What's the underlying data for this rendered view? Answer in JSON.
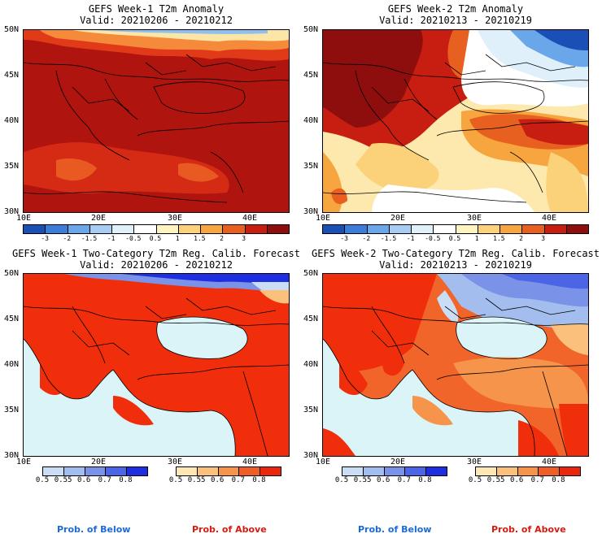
{
  "panels": [
    {
      "id": "p1",
      "title_line1": "GEFS Week-1 T2m Anomaly",
      "title_line2": "Valid: 20210206 - 20210212"
    },
    {
      "id": "p2",
      "title_line1": "GEFS Week-2 T2m Anomaly",
      "title_line2": "Valid: 20210213 - 20210219"
    },
    {
      "id": "p3",
      "title_line1": "GEFS Week-1 Two-Category T2m Reg. Calib. Forecast",
      "title_line2": "Valid: 20210206 - 20210212"
    },
    {
      "id": "p4",
      "title_line1": "GEFS Week-2 Two-Category T2m Reg. Calib. Forecast",
      "title_line2": "Valid: 20210213 - 20210219"
    }
  ],
  "axes": {
    "lat_labels": [
      "50N",
      "45N",
      "40N",
      "35N",
      "30N"
    ],
    "lon_labels": [
      "10E",
      "20E",
      "30E",
      "40E"
    ]
  },
  "anomaly_colorbar": {
    "labels": [
      "-3",
      "-2",
      "-1.5",
      "-1",
      "-0.5",
      "0.5",
      "1",
      "1.5",
      "2",
      "3"
    ],
    "colors": [
      "#1a4fb5",
      "#3b7dd8",
      "#6aa6ea",
      "#a8cdf5",
      "#dff0fb",
      "#ffffff",
      "#fff4c0",
      "#fbd27a",
      "#f7a53e",
      "#e8601f",
      "#c81e12",
      "#8e0e0e"
    ]
  },
  "prob_colorbars": {
    "below": {
      "labels": [
        "0.5",
        "0.55",
        "0.6",
        "0.7",
        "0.8"
      ],
      "colors": [
        "#c9ddf4",
        "#a3bdee",
        "#7a92e8",
        "#4c64e6",
        "#1f2ee0"
      ]
    },
    "above": {
      "labels": [
        "0.5",
        "0.55",
        "0.6",
        "0.7",
        "0.8"
      ],
      "colors": [
        "#fde7b5",
        "#fbc17c",
        "#f7944c",
        "#ef5d28",
        "#e8270e"
      ]
    }
  },
  "footer": {
    "below": "Prob. of Below",
    "above": "Prob. of Above"
  },
  "colors": {
    "sea": "#dbf4f8",
    "above_strong": "#f12e0c",
    "above_mid": "#f1642a",
    "below_strong": "#1a33e0"
  }
}
